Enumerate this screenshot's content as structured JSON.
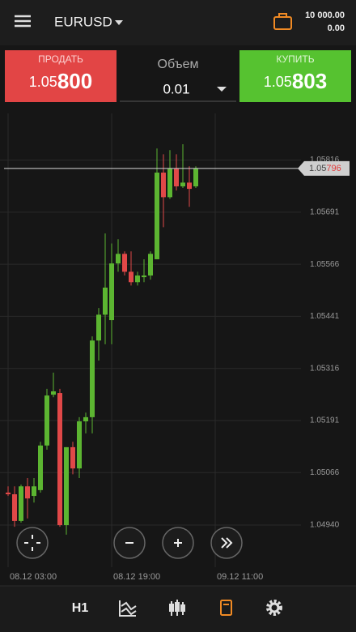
{
  "header": {
    "symbol": "EURUSD",
    "balance": "10 000.00",
    "profit": "0.00"
  },
  "trade_panel": {
    "sell_label": "ПРОДАТЬ",
    "sell_price_prefix": "1.05",
    "sell_price_main": "800",
    "volume_label": "Объем",
    "volume_value": "0.01",
    "buy_label": "КУПИТЬ",
    "buy_price_prefix": "1.05",
    "buy_price_main": "803"
  },
  "chart_data": {
    "type": "candlestick",
    "up_color": "#5cb531",
    "down_color": "#e04848",
    "open": [
      1.05018,
      1.05014,
      1.0495,
      1.05033,
      1.0501,
      1.05024,
      1.05131,
      1.05253,
      1.05257,
      1.0494,
      1.05127,
      1.05076,
      1.05189,
      1.05199,
      1.05383,
      1.05445,
      1.05432,
      1.05568,
      1.05591,
      1.05548,
      1.05523,
      1.05535,
      1.05539,
      1.05578,
      1.05786,
      1.05727,
      1.05795,
      1.05753,
      1.05762,
      1.05753
    ],
    "high": [
      1.05033,
      1.05033,
      1.05037,
      1.05053,
      1.05053,
      1.0514,
      1.05267,
      1.05306,
      1.05267,
      1.05127,
      1.0514,
      1.05199,
      1.0521,
      1.05393,
      1.05461,
      1.0564,
      1.05616,
      1.05626,
      1.05597,
      1.05597,
      1.05548,
      1.05578,
      1.05597,
      1.05844,
      1.0583,
      1.0584,
      1.0583,
      1.05854,
      1.05801,
      1.05801
    ],
    "low": [
      1.0501,
      1.04936,
      1.04946,
      1.04956,
      1.04994,
      1.05018,
      1.05121,
      1.05247,
      1.04936,
      1.04917,
      1.05062,
      1.05053,
      1.0516,
      1.0516,
      1.05335,
      1.05374,
      1.05374,
      1.05548,
      1.05539,
      1.05515,
      1.05515,
      1.05523,
      1.05529,
      1.05578,
      1.05655,
      1.05723,
      1.05743,
      1.05749,
      1.05704,
      1.05749
    ],
    "close": [
      1.05014,
      1.0495,
      1.05033,
      1.05004,
      1.05033,
      1.05131,
      1.05251,
      1.05261,
      1.0494,
      1.05127,
      1.05076,
      1.05189,
      1.05199,
      1.05383,
      1.05445,
      1.0551,
      1.05568,
      1.05591,
      1.05548,
      1.05523,
      1.05539,
      1.05539,
      1.05591,
      1.05786,
      1.05727,
      1.05795,
      1.05753,
      1.05762,
      1.05747,
      1.05796
    ],
    "ylim": [
      1.04839,
      1.05928
    ],
    "yticks": [
      {
        "value": 1.0494,
        "label": "1.04940"
      },
      1.05066,
      1.05191,
      1.05316,
      1.05441,
      1.05566,
      1.05691,
      1.05816
    ],
    "xticks": [
      {
        "value": 0,
        "label": "08.12 03:00"
      },
      {
        "value": 16,
        "label": "08.12 19:00"
      },
      {
        "value": 32,
        "label": "09.12 11:00"
      }
    ],
    "current_price": 1.05796,
    "current_price_prefix": "1.05",
    "current_price_suffix": "796",
    "grid": true
  },
  "bottom_nav": {
    "timeframe": "H1"
  }
}
